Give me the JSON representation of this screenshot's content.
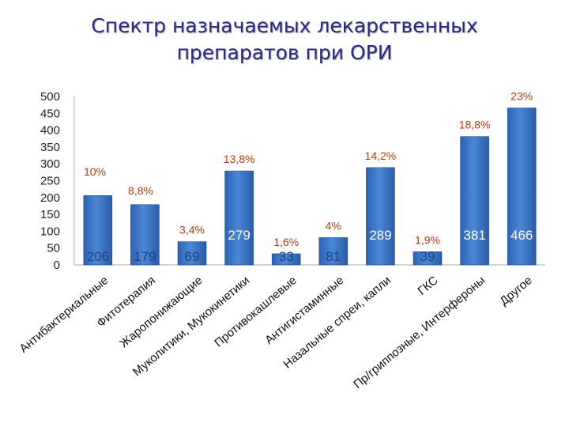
{
  "colors": {
    "title": "#2a2a86",
    "bar": "#3d78c8",
    "bar_dark": "#1f4e9a",
    "percent_text": "#b13b12",
    "value_on_bar": "#ffffff",
    "value_below": "#1f3f80",
    "axis": "#c8c8c8"
  },
  "chart_data": {
    "type": "bar",
    "title": "Спектр назначаемых лекарственных\nпрепаратов  при ОРИ",
    "xlabel": "",
    "ylabel": "",
    "ylim": [
      0,
      500
    ],
    "yticks": [
      "0",
      "50",
      "100",
      "150",
      "200",
      "250",
      "300",
      "350",
      "400",
      "450",
      "500"
    ],
    "grid": false,
    "legend": "none",
    "categories": [
      "Антибактериальные",
      "Фитотерапия",
      "Жаропонижающие",
      "Муколитики, Мукокинетики",
      "Противокашлевые",
      "Антигистаминные",
      "Назальные спреи, капли",
      "ГКС",
      "Пр/гриппозные, Интерфероны",
      "Другое"
    ],
    "values": [
      206,
      179,
      69,
      279,
      33,
      81,
      289,
      39,
      381,
      466
    ],
    "value_labels": [
      "206",
      "179",
      "69",
      "279",
      "33",
      "81",
      "289",
      "39",
      "381",
      "466"
    ],
    "percent_labels": [
      "10%",
      "8,8%",
      "3,4%",
      "13,8%",
      "1,6%",
      "4%",
      "14,2%",
      "1,9%",
      "18,8%",
      "23%"
    ]
  }
}
